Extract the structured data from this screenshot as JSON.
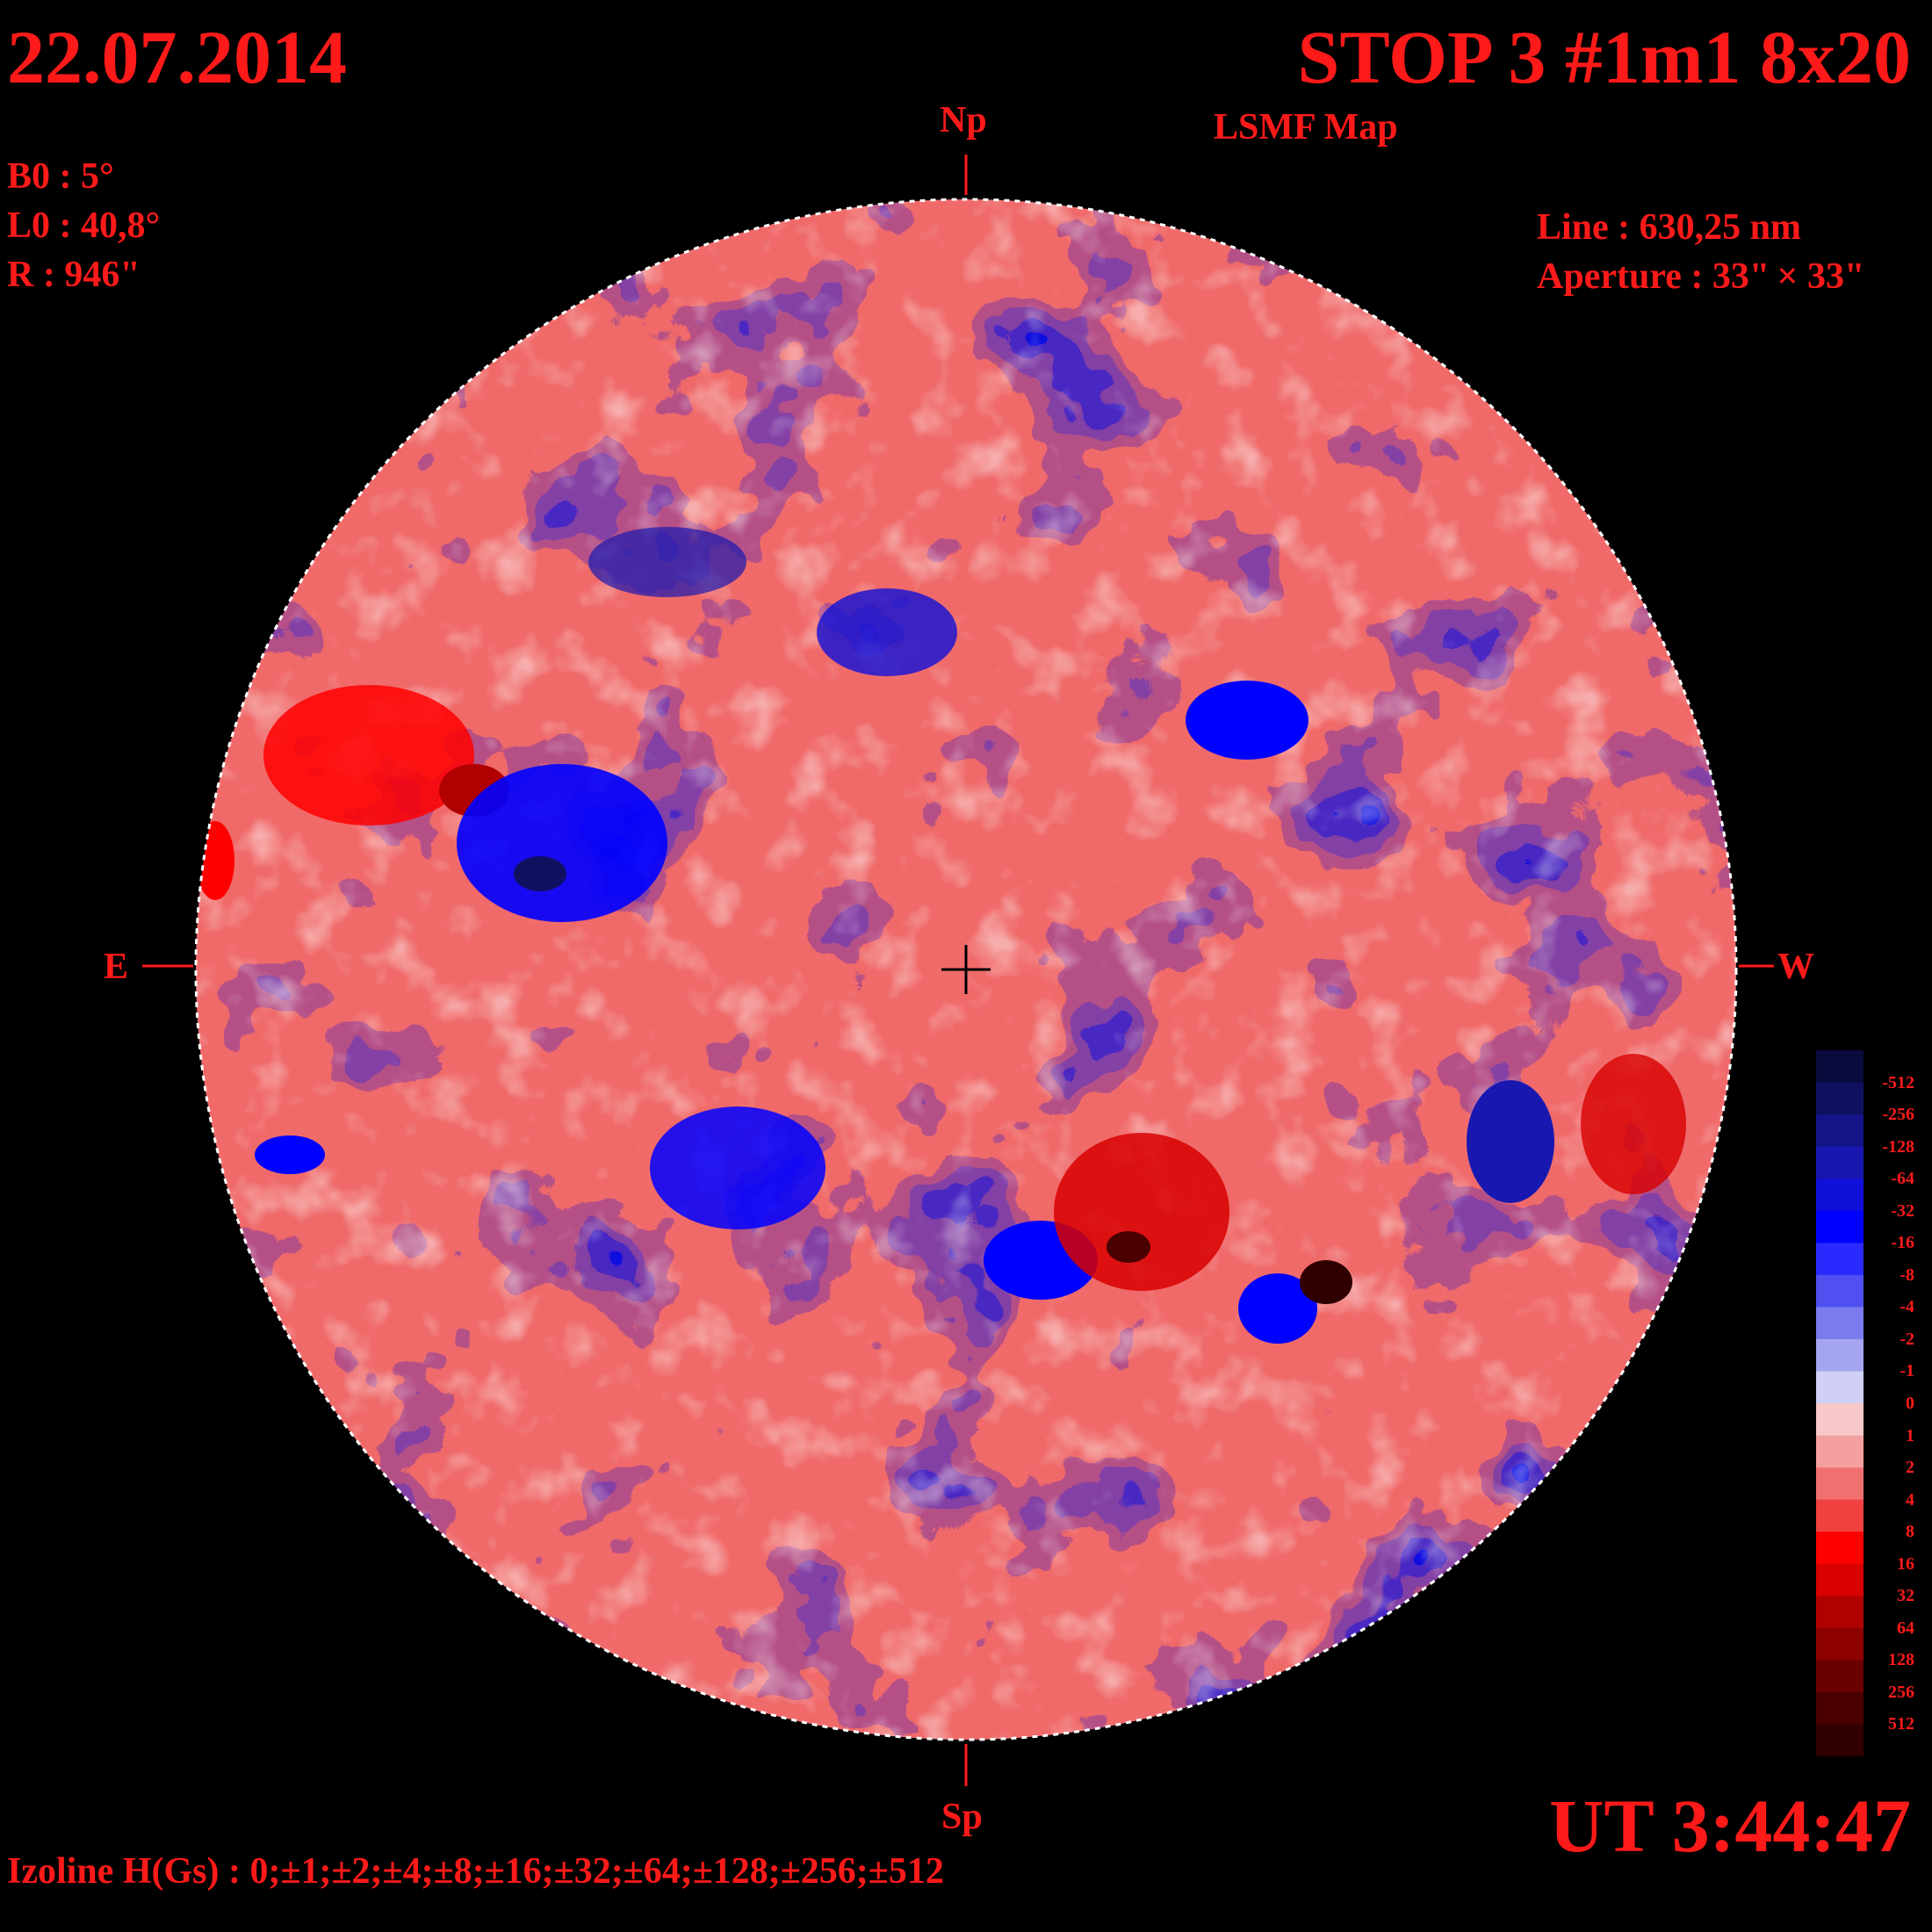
{
  "header": {
    "date": "22.07.2014",
    "title": "STOP 3 #1m1 8x20",
    "subtitle": "LSMF  Map"
  },
  "params": {
    "b0": "B0 : 5°",
    "l0": "L0 : 40,8°",
    "r": "R  : 946\"",
    "line": "Line :  630,25 nm",
    "aperture": "Aperture : 33\" × 33\""
  },
  "directions": {
    "north": "Np",
    "south": "Sp",
    "east": "E",
    "west": "W"
  },
  "footer": {
    "ut": "UT 3:44:47",
    "izoline": "Izoline H(Gs) : 0;±1;±2;±4;±8;±16;±32;±64;±128;±256;±512"
  },
  "scale": {
    "labels": [
      "-512",
      "-256",
      "-128",
      "-64",
      "-32",
      "-16",
      "-8",
      "-4",
      "-2",
      "-1",
      "0",
      "1",
      "2",
      "4",
      "8",
      "16",
      "32",
      "64",
      "128",
      "256",
      "512"
    ],
    "colors": [
      "#0a0a3c",
      "#101060",
      "#141488",
      "#1818b0",
      "#1010d8",
      "#0000ff",
      "#2a2aff",
      "#5050f0",
      "#7b7bf0",
      "#a4a4f0",
      "#cfd0f4",
      "#f8c8c8",
      "#f4a0a0",
      "#f07070",
      "#f04040",
      "#ff0000",
      "#d80000",
      "#b00000",
      "#8c0000",
      "#6a0000",
      "#4a0000",
      "#300000"
    ]
  },
  "colors": {
    "text": "#ff1a1a",
    "background": "#000000",
    "isoline": "#ffffff"
  }
}
